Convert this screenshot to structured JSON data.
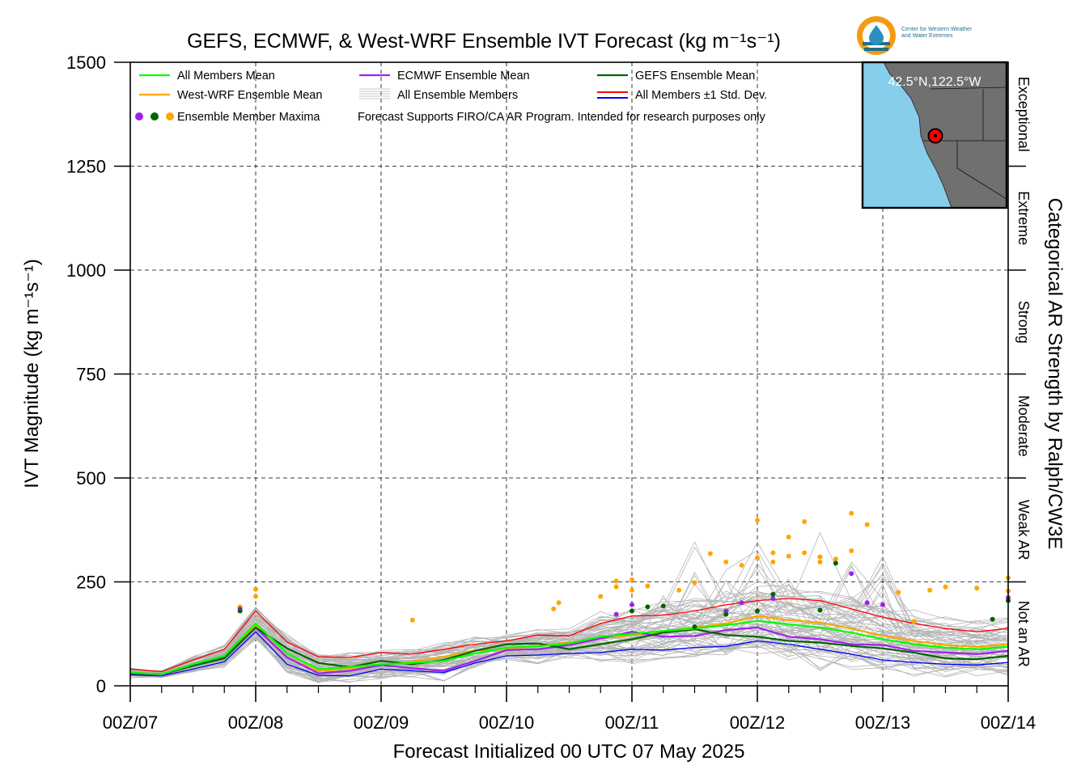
{
  "chart_data": {
    "type": "line",
    "title": "GEFS, ECMWF, & West-WRF Ensemble IVT Forecast (kg m⁻¹s⁻¹)",
    "xlabel": "Forecast Initialized 00 UTC 07 May 2025",
    "ylabel": "IVT Magnitude (kg m⁻¹s⁻¹)",
    "right_label": "Categorical AR Strength by Ralph/CW3E",
    "ylim": [
      0,
      1500
    ],
    "xlim_hours": [
      0,
      168
    ],
    "x_major_ticks": [
      {
        "hour": 0,
        "label": "00Z/07"
      },
      {
        "hour": 24,
        "label": "00Z/08"
      },
      {
        "hour": 48,
        "label": "00Z/09"
      },
      {
        "hour": 72,
        "label": "00Z/10"
      },
      {
        "hour": 96,
        "label": "00Z/11"
      },
      {
        "hour": 120,
        "label": "00Z/12"
      },
      {
        "hour": 144,
        "label": "00Z/13"
      },
      {
        "hour": 168,
        "label": "00Z/14"
      }
    ],
    "y_ticks": [
      0,
      250,
      500,
      750,
      1000,
      1250,
      1500
    ],
    "y_tick_labels": [
      "0",
      "250",
      "500",
      "750",
      "1000",
      "1250",
      "1500"
    ],
    "grid": true,
    "categories_right": [
      {
        "label": "Not an AR",
        "from": 0,
        "to": 250
      },
      {
        "label": "Weak AR",
        "from": 250,
        "to": 500
      },
      {
        "label": "Moderate",
        "from": 500,
        "to": 750
      },
      {
        "label": "Strong",
        "from": 750,
        "to": 1000
      },
      {
        "label": "Extreme",
        "from": 1000,
        "to": 1250
      },
      {
        "label": "Exceptional",
        "from": 1250,
        "to": 1500
      }
    ],
    "legend": {
      "placement": "top-left",
      "entries": [
        {
          "label": "All Members Mean",
          "color": "#00ff00"
        },
        {
          "label": "ECMWF Ensemble Mean",
          "color": "#a020f0"
        },
        {
          "label": "GEFS Ensemble Mean",
          "color": "#006400"
        },
        {
          "label": "West-WRF Ensemble Mean",
          "color": "#ffa500"
        },
        {
          "label": "All Ensemble Members",
          "color": "#b4b4b4"
        },
        {
          "label": "All Members ±1 Std. Dev.",
          "color": "#ff0000",
          "color2": "#0000ff"
        },
        {
          "label": "Ensemble Member Maxima",
          "colors": [
            "#a020f0",
            "#006400",
            "#ffa500"
          ]
        }
      ],
      "note": "Forecast Supports FIRO/CA AR Program. Intended for research purposes only"
    },
    "x_hours": [
      0,
      6,
      12,
      18,
      24,
      30,
      36,
      42,
      48,
      54,
      60,
      66,
      72,
      78,
      84,
      90,
      96,
      102,
      108,
      114,
      120,
      126,
      132,
      138,
      144,
      150,
      156,
      162,
      168
    ],
    "series": [
      {
        "name": "All Members Mean",
        "color": "#00ff00",
        "values": [
          32,
          28,
          52,
          72,
          150,
          78,
          40,
          45,
          52,
          55,
          60,
          78,
          92,
          95,
          102,
          118,
          125,
          132,
          138,
          146,
          156,
          148,
          140,
          128,
          112,
          100,
          92,
          88,
          94
        ]
      },
      {
        "name": "ECMWF Ensemble Mean",
        "color": "#a020f0",
        "values": [
          30,
          26,
          50,
          68,
          140,
          68,
          30,
          36,
          50,
          42,
          36,
          60,
          86,
          88,
          98,
          114,
          130,
          118,
          120,
          134,
          140,
          118,
          112,
          100,
          98,
          84,
          80,
          76,
          84
        ]
      },
      {
        "name": "GEFS Ensemble Mean",
        "color": "#006400",
        "values": [
          30,
          28,
          48,
          66,
          140,
          90,
          55,
          45,
          60,
          52,
          62,
          84,
          100,
          102,
          88,
          100,
          112,
          128,
          136,
          122,
          118,
          108,
          104,
          96,
          90,
          80,
          66,
          64,
          72
        ]
      },
      {
        "name": "West-WRF Ensemble Mean",
        "color": "#ffa500",
        "values": [
          32,
          28,
          50,
          68,
          145,
          68,
          35,
          42,
          50,
          58,
          70,
          85,
          88,
          96,
          104,
          115,
          122,
          130,
          140,
          150,
          168,
          158,
          152,
          138,
          120,
          108,
          98,
          94,
          100
        ]
      },
      {
        "name": "All Members +1 Std. Dev.",
        "color": "#ff0000",
        "values": [
          40,
          34,
          62,
          88,
          180,
          105,
          70,
          68,
          80,
          76,
          88,
          100,
          108,
          122,
          120,
          150,
          168,
          170,
          180,
          195,
          205,
          210,
          205,
          185,
          165,
          150,
          138,
          130,
          138
        ]
      },
      {
        "name": "All Members -1 Std. Dev.",
        "color": "#0000ff",
        "values": [
          26,
          24,
          40,
          58,
          130,
          52,
          25,
          24,
          40,
          36,
          32,
          55,
          72,
          74,
          78,
          80,
          88,
          86,
          92,
          95,
          108,
          100,
          88,
          76,
          62,
          56,
          52,
          50,
          56
        ]
      }
    ],
    "maxima": {
      "west_wrf": {
        "color": "#ffa500",
        "points": [
          [
            21,
            190
          ],
          [
            24,
            232
          ],
          [
            24,
            215
          ],
          [
            54,
            158
          ],
          [
            81,
            185
          ],
          [
            82,
            200
          ],
          [
            90,
            215
          ],
          [
            93,
            252
          ],
          [
            93,
            238
          ],
          [
            96,
            255
          ],
          [
            96,
            230
          ],
          [
            99,
            240
          ],
          [
            105,
            230
          ],
          [
            108,
            248
          ],
          [
            111,
            318
          ],
          [
            114,
            298
          ],
          [
            117,
            290
          ],
          [
            120,
            398
          ],
          [
            120,
            308
          ],
          [
            123,
            320
          ],
          [
            123,
            298
          ],
          [
            126,
            358
          ],
          [
            126,
            312
          ],
          [
            129,
            395
          ],
          [
            129,
            320
          ],
          [
            132,
            310
          ],
          [
            132,
            298
          ],
          [
            135,
            305
          ],
          [
            138,
            415
          ],
          [
            138,
            325
          ],
          [
            141,
            388
          ],
          [
            147,
            225
          ],
          [
            150,
            155
          ],
          [
            153,
            230
          ],
          [
            156,
            238
          ],
          [
            162,
            235
          ],
          [
            168,
            260
          ],
          [
            168,
            228
          ]
        ]
      },
      "ecmwf": {
        "color": "#a020f0",
        "points": [
          [
            21,
            185
          ],
          [
            93,
            172
          ],
          [
            96,
            195
          ],
          [
            114,
            180
          ],
          [
            117,
            200
          ],
          [
            123,
            210
          ],
          [
            138,
            270
          ],
          [
            141,
            200
          ],
          [
            144,
            195
          ],
          [
            168,
            212
          ]
        ]
      },
      "gefs": {
        "color": "#006400",
        "points": [
          [
            21,
            180
          ],
          [
            96,
            180
          ],
          [
            99,
            190
          ],
          [
            102,
            192
          ],
          [
            108,
            142
          ],
          [
            114,
            172
          ],
          [
            120,
            180
          ],
          [
            123,
            220
          ],
          [
            132,
            182
          ],
          [
            135,
            295
          ],
          [
            165,
            160
          ],
          [
            168,
            205
          ]
        ]
      }
    }
  },
  "map_inset": {
    "coord_label": "42.5°N,122.5°W",
    "ocean_color": "#87ceeb",
    "land_color": "#707070",
    "marker_color": "#ff0000"
  },
  "logo": {
    "text_line1": "Center for Western Weather",
    "text_line2": "and Water Extremes"
  }
}
